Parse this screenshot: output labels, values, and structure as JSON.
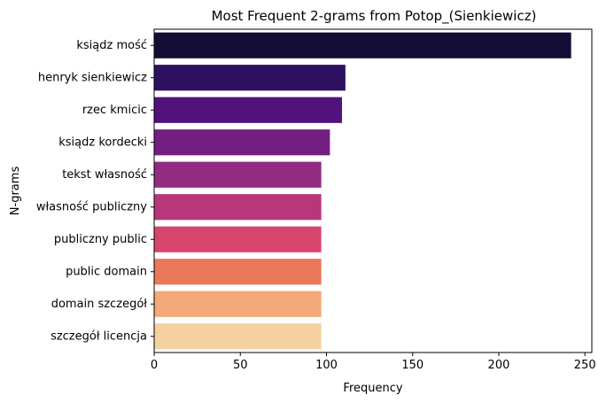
{
  "chart_data": {
    "type": "bar",
    "orientation": "horizontal",
    "title": "Most Frequent 2-grams from Potop_(Sienkiewicz)",
    "xlabel": "Frequency",
    "ylabel": "N-grams",
    "categories": [
      "ksiądz mość",
      "henryk sienkiewicz",
      "rzec kmicic",
      "ksiądz kordecki",
      "tekst własność",
      "własność publiczny",
      "publiczny public",
      "public domain",
      "domain szczegół",
      "szczegół licencja"
    ],
    "values": [
      242,
      111,
      109,
      102,
      97,
      97,
      97,
      97,
      97,
      97
    ],
    "xlim": [
      0,
      254
    ],
    "xticks": [
      0,
      50,
      100,
      150,
      200,
      250
    ],
    "grid": false,
    "legend": "none",
    "colors": [
      "#140e36",
      "#2d1160",
      "#51127c",
      "#721f81",
      "#932b80",
      "#b73779",
      "#d8456c",
      "#e9785a",
      "#f3a97a",
      "#f4d19f"
    ]
  }
}
